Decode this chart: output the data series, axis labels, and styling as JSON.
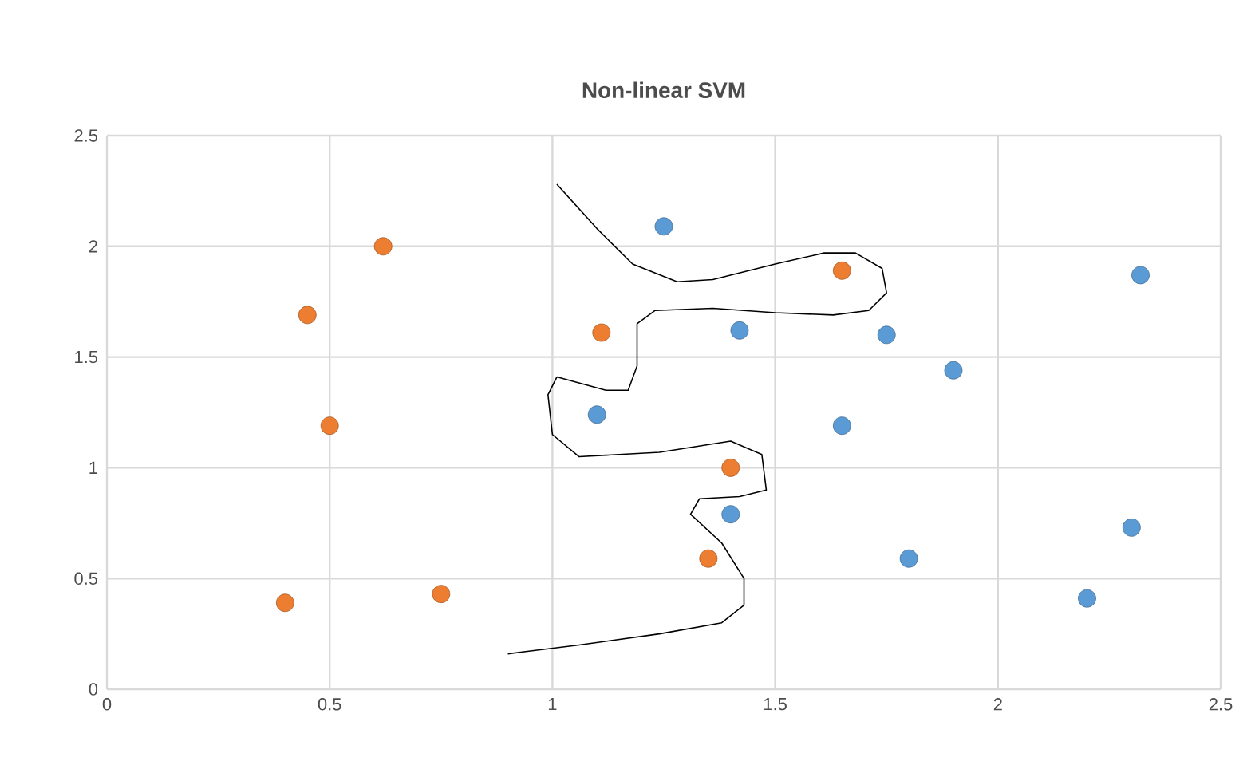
{
  "chart_data": {
    "type": "scatter",
    "title": "Non-linear SVM",
    "grid": true,
    "xlim": [
      0,
      2.5
    ],
    "xticks": [
      0,
      0.5,
      1,
      1.5,
      2,
      2.5
    ],
    "ylim": [
      0,
      2.5
    ],
    "yticks": [
      0,
      0.5,
      1,
      1.5,
      2,
      2.5
    ],
    "series": [
      {
        "color": "#ed7d31",
        "marker": "circle",
        "x": [
          0.62,
          0.45,
          0.5,
          0.4,
          0.75,
          1.11,
          1.4,
          1.35,
          1.65
        ],
        "values": [
          2.0,
          1.69,
          1.19,
          0.39,
          0.43,
          1.61,
          1.0,
          0.59,
          1.89
        ]
      },
      {
        "color": "#5b9bd5",
        "marker": "circle",
        "x": [
          1.25,
          1.42,
          1.75,
          1.9,
          1.1,
          1.65,
          1.4,
          1.8,
          2.2,
          2.3,
          2.32
        ],
        "values": [
          2.09,
          1.62,
          1.6,
          1.44,
          1.24,
          1.19,
          0.79,
          0.59,
          0.41,
          0.73,
          1.87
        ]
      },
      {
        "type": "line",
        "color": "#000000",
        "marker": "none",
        "line_style": "solid",
        "x": [
          1.01,
          1.1,
          1.18,
          1.28,
          1.36,
          1.5,
          1.61,
          1.68,
          1.74,
          1.75,
          1.71,
          1.63,
          1.5,
          1.36,
          1.23,
          1.19,
          1.19,
          1.17,
          1.12,
          1.01,
          0.99,
          1.0,
          1.06,
          1.24,
          1.4,
          1.47,
          1.48,
          1.42,
          1.33,
          1.31,
          1.38,
          1.43,
          1.43,
          1.38,
          1.24,
          1.06,
          0.94,
          0.9
        ],
        "values": [
          2.28,
          2.08,
          1.92,
          1.84,
          1.85,
          1.92,
          1.97,
          1.97,
          1.9,
          1.79,
          1.71,
          1.69,
          1.7,
          1.72,
          1.71,
          1.65,
          1.46,
          1.35,
          1.35,
          1.41,
          1.33,
          1.15,
          1.05,
          1.07,
          1.12,
          1.06,
          0.9,
          0.87,
          0.86,
          0.79,
          0.66,
          0.5,
          0.38,
          0.3,
          0.25,
          0.2,
          0.17,
          0.16
        ]
      }
    ]
  }
}
